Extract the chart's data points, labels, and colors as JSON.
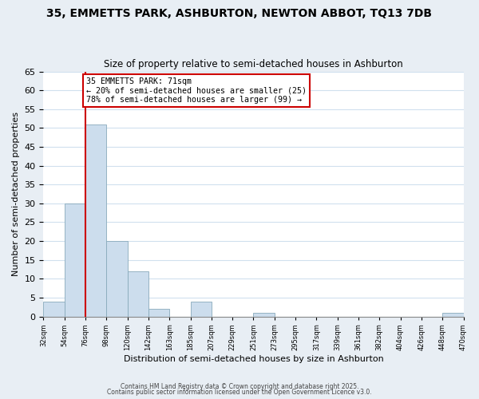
{
  "title": "35, EMMETTS PARK, ASHBURTON, NEWTON ABBOT, TQ13 7DB",
  "subtitle": "Size of property relative to semi-detached houses in Ashburton",
  "xlabel": "Distribution of semi-detached houses by size in Ashburton",
  "ylabel": "Number of semi-detached properties",
  "bin_labels": [
    "32sqm",
    "54sqm",
    "76sqm",
    "98sqm",
    "120sqm",
    "142sqm",
    "163sqm",
    "185sqm",
    "207sqm",
    "229sqm",
    "251sqm",
    "273sqm",
    "295sqm",
    "317sqm",
    "339sqm",
    "361sqm",
    "382sqm",
    "404sqm",
    "426sqm",
    "448sqm",
    "470sqm"
  ],
  "bar_values": [
    4,
    30,
    51,
    20,
    12,
    2,
    0,
    4,
    0,
    0,
    1,
    0,
    0,
    0,
    0,
    0,
    0,
    0,
    0,
    1,
    0
  ],
  "bar_color": "#ccdded",
  "bar_edge_color": "#88aabb",
  "grid_color": "#d0e0ee",
  "annotation_text": "35 EMMETTS PARK: 71sqm\n← 20% of semi-detached houses are smaller (25)\n78% of semi-detached houses are larger (99) →",
  "annotation_box_color": "#ffffff",
  "annotation_border_color": "#cc0000",
  "vline_color": "#cc0000",
  "ylim": [
    0,
    65
  ],
  "yticks": [
    0,
    5,
    10,
    15,
    20,
    25,
    30,
    35,
    40,
    45,
    50,
    55,
    60,
    65
  ],
  "footer_line1": "Contains HM Land Registry data © Crown copyright and database right 2025.",
  "footer_line2": "Contains public sector information licensed under the Open Government Licence v3.0.",
  "fig_background_color": "#e8eef4",
  "plot_background_color": "#ffffff"
}
